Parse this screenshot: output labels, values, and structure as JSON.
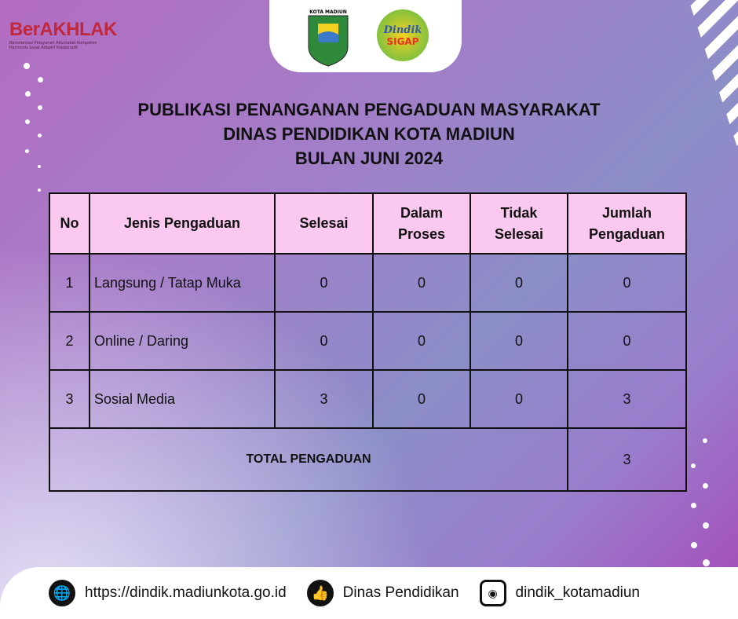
{
  "logo": {
    "name": "BerAKHLAK",
    "tagline_1": "Berorientasi Pelayanan Akuntabel Kompeten",
    "tagline_2": "Harmonis Loyal Adaptif Kolaboratif"
  },
  "crest": {
    "label": "KOTA MADIUN"
  },
  "sigap": {
    "line1": "Dindik",
    "line2": "SIGAP"
  },
  "title": [
    "PUBLIKASI PENANGANAN PENGADUAN MASYARAKAT",
    "DINAS PENDIDIKAN KOTA MADIUN",
    "BULAN JUNI 2024"
  ],
  "table": {
    "headers": [
      "No",
      "Jenis Pengaduan",
      "Selesai",
      "Dalam Proses",
      "Tidak Selesai",
      "Jumlah Pengaduan"
    ],
    "rows": [
      [
        "1",
        "Langsung / Tatap Muka",
        "0",
        "0",
        "0",
        "0"
      ],
      [
        "2",
        "Online / Daring",
        "0",
        "0",
        "0",
        "0"
      ],
      [
        "3",
        "Sosial Media",
        "3",
        "0",
        "0",
        "3"
      ]
    ],
    "total_label": "TOTAL PENGADUAN",
    "total_value": "3"
  },
  "footer": {
    "website": "https://dindik.madiunkota.go.id",
    "facebook": "Dinas Pendidikan",
    "instagram": "dindik_kotamadiun"
  },
  "colors": {
    "header_bg": "#fbc9f0",
    "brand_red": "#c0283c"
  }
}
